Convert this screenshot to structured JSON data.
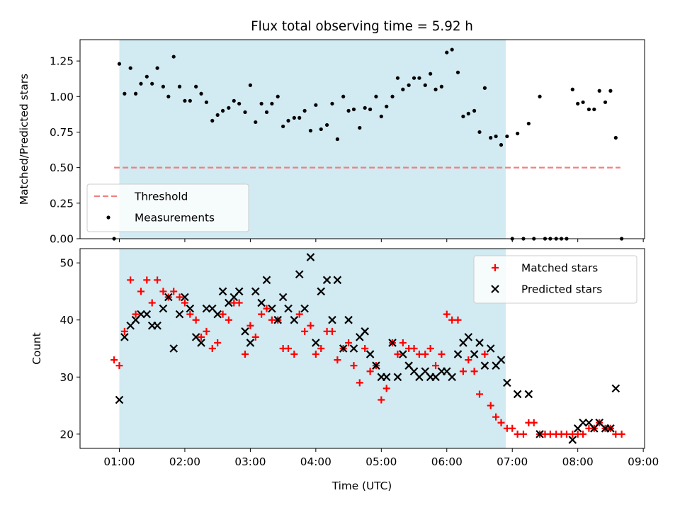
{
  "chart_data": {
    "title": "Flux total observing time = 5.92 h",
    "xlabel": "Time (UTC)",
    "x_unit": "hours UTC",
    "xlim": [
      0.4,
      9.02
    ],
    "xticks": [
      1,
      2,
      3,
      4,
      5,
      6,
      7,
      8,
      9
    ],
    "xtick_labels": [
      "01:00",
      "02:00",
      "03:00",
      "04:00",
      "05:00",
      "06:00",
      "07:00",
      "08:00",
      "09:00"
    ],
    "shaded_span": {
      "start": 1.0,
      "end": 6.9,
      "color": "#add8e6"
    },
    "panels": [
      {
        "type": "scatter",
        "ylabel": "Matched/Predicted stars",
        "ylim": [
          0,
          1.4
        ],
        "yticks": [
          0.0,
          0.25,
          0.5,
          0.75,
          1.0,
          1.25
        ],
        "ytick_labels": [
          "0.00",
          "0.25",
          "0.50",
          "0.75",
          "1.00",
          "1.25"
        ],
        "legend_position": "lower-left",
        "lines": [
          {
            "name": "Threshold",
            "y": 0.5,
            "x": [
              0.92,
              8.65
            ],
            "color": "#f08080",
            "style": "dashed"
          }
        ],
        "series": [
          {
            "name": "Measurements",
            "marker": "dot",
            "color": "#000000",
            "x": [
              0.92,
              1.0,
              1.08,
              1.17,
              1.25,
              1.33,
              1.42,
              1.5,
              1.58,
              1.67,
              1.75,
              1.83,
              1.92,
              2.0,
              2.08,
              2.17,
              2.25,
              2.33,
              2.42,
              2.5,
              2.58,
              2.67,
              2.75,
              2.83,
              2.92,
              3.0,
              3.08,
              3.17,
              3.25,
              3.33,
              3.42,
              3.5,
              3.58,
              3.67,
              3.75,
              3.83,
              3.92,
              4.0,
              4.08,
              4.17,
              4.25,
              4.33,
              4.42,
              4.5,
              4.58,
              4.67,
              4.75,
              4.83,
              4.92,
              5.0,
              5.08,
              5.17,
              5.25,
              5.33,
              5.42,
              5.5,
              5.58,
              5.67,
              5.75,
              5.83,
              5.92,
              6.0,
              6.08,
              6.17,
              6.25,
              6.33,
              6.42,
              6.5,
              6.58,
              6.67,
              6.75,
              6.83,
              6.92,
              7.0,
              7.08,
              7.17,
              7.25,
              7.33,
              7.42,
              7.5,
              7.58,
              7.67,
              7.75,
              7.83,
              7.92,
              8.0,
              8.08,
              8.17,
              8.25,
              8.33,
              8.42,
              8.5,
              8.58,
              8.67
            ],
            "y": [
              0.0,
              1.23,
              1.02,
              1.2,
              1.02,
              1.09,
              1.14,
              1.09,
              1.2,
              1.07,
              1.0,
              1.28,
              1.07,
              0.97,
              0.97,
              1.07,
              1.02,
              0.96,
              0.83,
              0.87,
              0.9,
              0.92,
              0.97,
              0.95,
              0.89,
              1.08,
              0.82,
              0.95,
              0.89,
              0.95,
              1.0,
              0.79,
              0.83,
              0.85,
              0.85,
              0.9,
              0.76,
              0.94,
              0.77,
              0.8,
              0.95,
              0.7,
              1.0,
              0.9,
              0.91,
              0.78,
              0.92,
              0.91,
              1.0,
              0.86,
              0.93,
              1.0,
              1.13,
              1.05,
              1.08,
              1.13,
              1.13,
              1.08,
              1.16,
              1.05,
              1.07,
              1.31,
              1.33,
              1.17,
              0.86,
              0.88,
              0.9,
              0.75,
              1.06,
              0.71,
              0.72,
              0.66,
              0.72,
              0.0,
              0.74,
              0.0,
              0.81,
              0.0,
              1.0,
              0.0,
              0.0,
              0.0,
              0.0,
              0.0,
              1.05,
              0.95,
              0.96,
              0.91,
              0.91,
              1.04,
              0.96,
              1.04,
              0.71,
              0.0
            ]
          }
        ]
      },
      {
        "type": "scatter",
        "ylabel": "Count",
        "ylim": [
          17.5,
          52.5
        ],
        "yticks": [
          20,
          30,
          40,
          50
        ],
        "ytick_labels": [
          "20",
          "30",
          "40",
          "50"
        ],
        "legend_position": "upper-right",
        "series": [
          {
            "name": "Matched stars",
            "marker": "plus",
            "color": "#ff0000",
            "x": [
              0.92,
              1.0,
              1.08,
              1.17,
              1.25,
              1.33,
              1.42,
              1.5,
              1.58,
              1.67,
              1.75,
              1.83,
              1.92,
              2.0,
              2.08,
              2.17,
              2.25,
              2.33,
              2.42,
              2.5,
              2.58,
              2.67,
              2.75,
              2.83,
              2.92,
              3.0,
              3.08,
              3.17,
              3.25,
              3.33,
              3.42,
              3.5,
              3.58,
              3.67,
              3.75,
              3.83,
              3.92,
              4.0,
              4.08,
              4.17,
              4.25,
              4.33,
              4.42,
              4.5,
              4.58,
              4.67,
              4.75,
              4.83,
              4.92,
              5.0,
              5.08,
              5.17,
              5.25,
              5.33,
              5.42,
              5.5,
              5.58,
              5.67,
              5.75,
              5.83,
              5.92,
              6.0,
              6.08,
              6.17,
              6.25,
              6.33,
              6.42,
              6.5,
              6.58,
              6.67,
              6.75,
              6.83,
              6.92,
              7.0,
              7.08,
              7.17,
              7.25,
              7.33,
              7.42,
              7.5,
              7.58,
              7.67,
              7.75,
              7.83,
              7.92,
              8.0,
              8.08,
              8.17,
              8.25,
              8.33,
              8.42,
              8.5,
              8.58,
              8.67
            ],
            "y": [
              33,
              32,
              38,
              47,
              41,
              45,
              47,
              43,
              47,
              45,
              44,
              45,
              44,
              43,
              41,
              40,
              37,
              38,
              35,
              36,
              41,
              40,
              43,
              43,
              34,
              39,
              37,
              41,
              42,
              40,
              40,
              35,
              35,
              34,
              41,
              38,
              39,
              34,
              35,
              38,
              38,
              33,
              35,
              36,
              32,
              29,
              35,
              31,
              32,
              26,
              28,
              36,
              34,
              36,
              35,
              35,
              34,
              34,
              35,
              32,
              34,
              41,
              40,
              40,
              31,
              33,
              31,
              27,
              34,
              25,
              23,
              22,
              21,
              21,
              20,
              20,
              22,
              22,
              20,
              20,
              20,
              20,
              20,
              20,
              20,
              20,
              20,
              21,
              21,
              22,
              21,
              21,
              20,
              20
            ]
          },
          {
            "name": "Predicted stars",
            "marker": "x",
            "color": "#000000",
            "x": [
              1.0,
              1.08,
              1.17,
              1.25,
              1.33,
              1.42,
              1.5,
              1.58,
              1.67,
              1.75,
              1.83,
              1.92,
              2.0,
              2.08,
              2.17,
              2.25,
              2.33,
              2.42,
              2.5,
              2.58,
              2.67,
              2.75,
              2.83,
              2.92,
              3.0,
              3.08,
              3.17,
              3.25,
              3.33,
              3.42,
              3.5,
              3.58,
              3.67,
              3.75,
              3.83,
              3.92,
              4.0,
              4.08,
              4.17,
              4.25,
              4.33,
              4.42,
              4.5,
              4.58,
              4.67,
              4.75,
              4.83,
              4.92,
              5.0,
              5.08,
              5.17,
              5.25,
              5.33,
              5.42,
              5.5,
              5.58,
              5.67,
              5.75,
              5.83,
              5.92,
              6.0,
              6.08,
              6.17,
              6.25,
              6.33,
              6.42,
              6.5,
              6.58,
              6.67,
              6.75,
              6.83,
              6.92,
              7.08,
              7.25,
              7.42,
              7.92,
              8.0,
              8.08,
              8.17,
              8.25,
              8.33,
              8.42,
              8.5,
              8.58
            ],
            "y": [
              26,
              37,
              39,
              40,
              41,
              41,
              39,
              39,
              42,
              44,
              35,
              41,
              44,
              42,
              37,
              36,
              42,
              42,
              41,
              45,
              43,
              44,
              45,
              38,
              36,
              45,
              43,
              47,
              42,
              40,
              44,
              42,
              40,
              48,
              42,
              51,
              36,
              45,
              47,
              40,
              47,
              35,
              40,
              35,
              37,
              38,
              34,
              32,
              30,
              30,
              36,
              30,
              34,
              32,
              31,
              30,
              31,
              30,
              30,
              31,
              31,
              30,
              34,
              36,
              37,
              34,
              36,
              32,
              35,
              32,
              33,
              29,
              27,
              27,
              20,
              19,
              21,
              22,
              22,
              21,
              22,
              21,
              21,
              28
            ]
          }
        ]
      }
    ]
  }
}
